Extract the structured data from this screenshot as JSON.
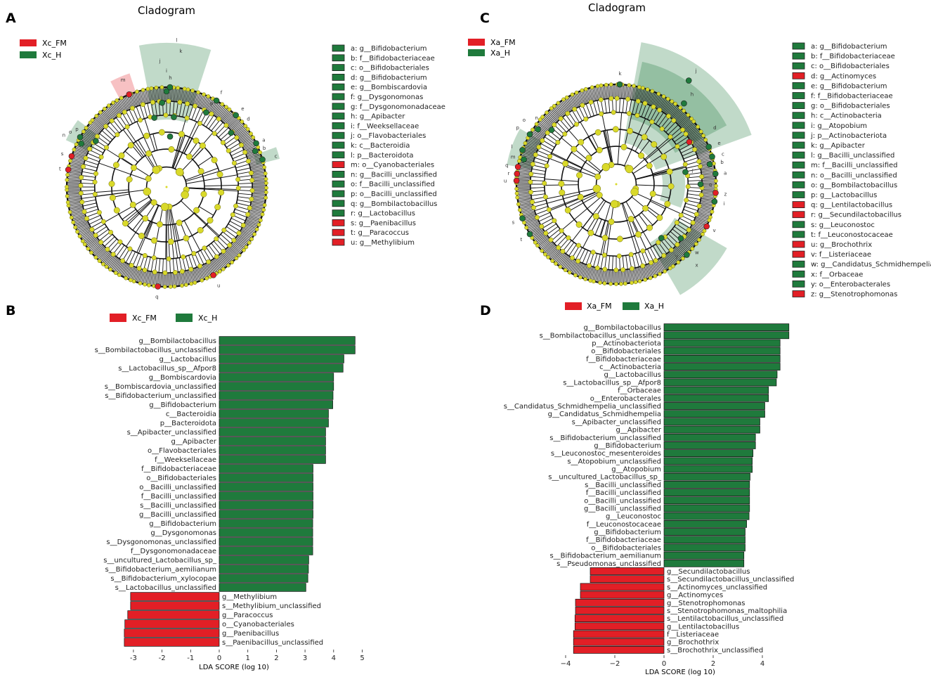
{
  "panel_letters": {
    "a": "A",
    "b": "B",
    "c": "C",
    "d": "D"
  },
  "colors": {
    "fm": "#e21f26",
    "h": "#1f7a3c",
    "node": "#d9d92a",
    "branch": "#111111"
  },
  "cladogram_A": {
    "title": "Cladogram",
    "legend": [
      {
        "label": "Xc_FM",
        "group": "fm"
      },
      {
        "label": "Xc_H",
        "group": "h"
      }
    ],
    "node_letters": [
      "a",
      "b",
      "c",
      "d",
      "e",
      "f",
      "g",
      "h",
      "i",
      "j",
      "k",
      "l",
      "m",
      "n",
      "o",
      "p",
      "q",
      "r",
      "s",
      "t",
      "u"
    ],
    "key": [
      {
        "text": "a: g__Bifidobacterium",
        "group": "h"
      },
      {
        "text": "b: f__Bifidobacteriaceae",
        "group": "h"
      },
      {
        "text": "c: o__Bifidobacteriales",
        "group": "h"
      },
      {
        "text": "d: g__Bifidobacterium",
        "group": "h"
      },
      {
        "text": "e: g__Bombiscardovia",
        "group": "h"
      },
      {
        "text": "f: g__Dysgonomonas",
        "group": "h"
      },
      {
        "text": "g: f__Dysgonomonadaceae",
        "group": "h"
      },
      {
        "text": "h: g__Apibacter",
        "group": "h"
      },
      {
        "text": "i: f__Weeksellaceae",
        "group": "h"
      },
      {
        "text": "j: o__Flavobacteriales",
        "group": "h"
      },
      {
        "text": "k: c__Bacteroidia",
        "group": "h"
      },
      {
        "text": "l: p__Bacteroidota",
        "group": "h"
      },
      {
        "text": "m: o__Cyanobacteriales",
        "group": "fm"
      },
      {
        "text": "n: g__Bacilli_unclassified",
        "group": "h"
      },
      {
        "text": "o: f__Bacilli_unclassified",
        "group": "h"
      },
      {
        "text": "p: o__Bacilli_unclassified",
        "group": "h"
      },
      {
        "text": "q: g__Bombilactobacillus",
        "group": "h"
      },
      {
        "text": "r: g__Lactobacillus",
        "group": "h"
      },
      {
        "text": "s: g__Paenibacillus",
        "group": "fm"
      },
      {
        "text": "t: g__Paracoccus",
        "group": "fm"
      },
      {
        "text": "u: g__Methylibium",
        "group": "fm"
      }
    ]
  },
  "cladogram_C": {
    "title": "Cladogram",
    "legend": [
      {
        "label": "Xa_FM",
        "group": "fm"
      },
      {
        "label": "Xa_H",
        "group": "h"
      }
    ],
    "node_letters": [
      "a",
      "b",
      "c",
      "d",
      "e",
      "f",
      "g",
      "h",
      "i",
      "j",
      "k",
      "l",
      "m",
      "n",
      "o",
      "p",
      "q",
      "r",
      "s",
      "t",
      "u",
      "v",
      "w",
      "x",
      "y",
      "z"
    ],
    "key": [
      {
        "text": "a: g__Bifidobacterium",
        "group": "h"
      },
      {
        "text": "b: f__Bifidobacteriaceae",
        "group": "h"
      },
      {
        "text": "c: o__Bifidobacteriales",
        "group": "h"
      },
      {
        "text": "d: g__Actinomyces",
        "group": "fm"
      },
      {
        "text": "e: g__Bifidobacterium",
        "group": "h"
      },
      {
        "text": "f: f__Bifidobacteriaceae",
        "group": "h"
      },
      {
        "text": "g: o__Bifidobacteriales",
        "group": "h"
      },
      {
        "text": "h: c__Actinobacteria",
        "group": "h"
      },
      {
        "text": "i: g__Atopobium",
        "group": "h"
      },
      {
        "text": "j: p__Actinobacteriota",
        "group": "h"
      },
      {
        "text": "k: g__Apibacter",
        "group": "h"
      },
      {
        "text": "l: g__Bacilli_unclassified",
        "group": "h"
      },
      {
        "text": "m: f__Bacilli_unclassified",
        "group": "h"
      },
      {
        "text": "n: o__Bacilli_unclassified",
        "group": "h"
      },
      {
        "text": "o: g__Bombilactobacillus",
        "group": "h"
      },
      {
        "text": "p: g__Lactobacillus",
        "group": "h"
      },
      {
        "text": "q: g__Lentilactobacillus",
        "group": "fm"
      },
      {
        "text": "r: g__Secundilactobacillus",
        "group": "fm"
      },
      {
        "text": "s: g__Leuconostoc",
        "group": "h"
      },
      {
        "text": "t: f__Leuconostocaceae",
        "group": "h"
      },
      {
        "text": "u: g__Brochothrix",
        "group": "fm"
      },
      {
        "text": "v: f__Listeriaceae",
        "group": "fm"
      },
      {
        "text": "w: g__Candidatus_Schmidhempelia",
        "group": "h"
      },
      {
        "text": "x: f__Orbaceae",
        "group": "h"
      },
      {
        "text": "y: o__Enterobacterales",
        "group": "h"
      },
      {
        "text": "z: g__Stenotrophomonas",
        "group": "fm"
      }
    ]
  },
  "chart_data": [
    {
      "type": "bar",
      "orientation": "horizontal",
      "panel": "B",
      "legend": [
        {
          "label": "Xc_FM",
          "group": "fm"
        },
        {
          "label": "Xc_H",
          "group": "h"
        }
      ],
      "xlabel": "LDA SCORE (log 10)",
      "xlim": [
        -3.6,
        5.2
      ],
      "xticks": [
        -3,
        -2,
        -1,
        0,
        1,
        2,
        3,
        4,
        5
      ],
      "bars": [
        {
          "label": "g__Bombilactobacillus",
          "value": 4.75,
          "group": "h"
        },
        {
          "label": "s__Bombilactobacillus_unclassified",
          "value": 4.75,
          "group": "h"
        },
        {
          "label": "g__Lactobacillus",
          "value": 4.36,
          "group": "h"
        },
        {
          "label": "s__Lactobacillus_sp__Afpor8",
          "value": 4.33,
          "group": "h"
        },
        {
          "label": "g__Bombiscardovia",
          "value": 4.0,
          "group": "h"
        },
        {
          "label": "s__Bombiscardovia_unclassified",
          "value": 4.0,
          "group": "h"
        },
        {
          "label": "s__Bifidobacterium_unclassified",
          "value": 3.98,
          "group": "h"
        },
        {
          "label": "g__Bifidobacterium",
          "value": 3.97,
          "group": "h"
        },
        {
          "label": "c__Bacteroidia",
          "value": 3.82,
          "group": "h"
        },
        {
          "label": "p__Bacteroidota",
          "value": 3.82,
          "group": "h"
        },
        {
          "label": "s__Apibacter_unclassified",
          "value": 3.72,
          "group": "h"
        },
        {
          "label": "g__Apibacter",
          "value": 3.72,
          "group": "h"
        },
        {
          "label": "o__Flavobacteriales",
          "value": 3.72,
          "group": "h"
        },
        {
          "label": "f__Weeksellaceae",
          "value": 3.72,
          "group": "h"
        },
        {
          "label": "f__Bifidobacteriaceae",
          "value": 3.28,
          "group": "h"
        },
        {
          "label": "o__Bifidobacteriales",
          "value": 3.28,
          "group": "h"
        },
        {
          "label": "o__Bacilli_unclassified",
          "value": 3.28,
          "group": "h"
        },
        {
          "label": "f__Bacilli_unclassified",
          "value": 3.28,
          "group": "h"
        },
        {
          "label": "s__Bacilli_unclassified",
          "value": 3.28,
          "group": "h"
        },
        {
          "label": "g__Bacilli_unclassified",
          "value": 3.28,
          "group": "h"
        },
        {
          "label": "g__Bifidobacterium",
          "value": 3.27,
          "group": "h"
        },
        {
          "label": "g__Dysgonomonas",
          "value": 3.27,
          "group": "h"
        },
        {
          "label": "s__Dysgonomonas_unclassified",
          "value": 3.27,
          "group": "h"
        },
        {
          "label": "f__Dysgonomonadaceae",
          "value": 3.27,
          "group": "h"
        },
        {
          "label": "s__uncultured_Lactobacillus_sp_",
          "value": 3.13,
          "group": "h"
        },
        {
          "label": "s__Bifidobacterium_aemilianum",
          "value": 3.12,
          "group": "h"
        },
        {
          "label": "s__Bifidobacterium_xylocopae",
          "value": 3.1,
          "group": "h"
        },
        {
          "label": "s__Lactobacillus_unclassified",
          "value": 3.03,
          "group": "h"
        },
        {
          "label": "g__Methylibium",
          "value": -3.1,
          "group": "fm"
        },
        {
          "label": "s__Methylibium_unclassified",
          "value": -3.1,
          "group": "fm"
        },
        {
          "label": "g__Paracoccus",
          "value": -3.2,
          "group": "fm"
        },
        {
          "label": "o__Cyanobacteriales",
          "value": -3.3,
          "group": "fm"
        },
        {
          "label": "g__Paenibacillus",
          "value": -3.32,
          "group": "fm"
        },
        {
          "label": "s__Paenibacillus_unclassified",
          "value": -3.32,
          "group": "fm"
        }
      ]
    },
    {
      "type": "bar",
      "orientation": "horizontal",
      "panel": "D",
      "legend": [
        {
          "label": "Xa_FM",
          "group": "fm"
        },
        {
          "label": "Xa_H",
          "group": "h"
        }
      ],
      "xlabel": "LDA SCORE (log 10)",
      "xlim": [
        -4.3,
        5.3
      ],
      "xticks": [
        -4,
        -2,
        0,
        2,
        4
      ],
      "xtick_labels": [
        "−4",
        "−2",
        "0",
        "2",
        "4"
      ],
      "bars": [
        {
          "label": "g__Bombilactobacillus",
          "value": 5.08,
          "group": "h"
        },
        {
          "label": "s__Bombilactobacillus_unclassified",
          "value": 5.08,
          "group": "h"
        },
        {
          "label": "p__Actinobacteriota",
          "value": 4.72,
          "group": "h"
        },
        {
          "label": "o__Bifidobacteriales",
          "value": 4.72,
          "group": "h"
        },
        {
          "label": "f__Bifidobacteriaceae",
          "value": 4.72,
          "group": "h"
        },
        {
          "label": "c__Actinobacteria",
          "value": 4.72,
          "group": "h"
        },
        {
          "label": "g__Lactobacillus",
          "value": 4.6,
          "group": "h"
        },
        {
          "label": "s__Lactobacillus_sp__Afpor8",
          "value": 4.57,
          "group": "h"
        },
        {
          "label": "f__Orbaceae",
          "value": 4.25,
          "group": "h"
        },
        {
          "label": "o__Enterobacterales",
          "value": 4.25,
          "group": "h"
        },
        {
          "label": "s__Candidatus_Schmidhempelia_unclassified",
          "value": 4.1,
          "group": "h"
        },
        {
          "label": "g__Candidatus_Schmidhempelia",
          "value": 4.1,
          "group": "h"
        },
        {
          "label": "s__Apibacter_unclassified",
          "value": 3.9,
          "group": "h"
        },
        {
          "label": "g__Apibacter",
          "value": 3.9,
          "group": "h"
        },
        {
          "label": "s__Bifidobacterium_unclassified",
          "value": 3.72,
          "group": "h"
        },
        {
          "label": "g__Bifidobacterium",
          "value": 3.72,
          "group": "h"
        },
        {
          "label": "s__Leuconostoc_mesenteroides",
          "value": 3.62,
          "group": "h"
        },
        {
          "label": "s__Atopobium_unclassified",
          "value": 3.59,
          "group": "h"
        },
        {
          "label": "g__Atopobium",
          "value": 3.59,
          "group": "h"
        },
        {
          "label": "s__uncultured_Lactobacillus_sp_",
          "value": 3.5,
          "group": "h"
        },
        {
          "label": "s__Bacilli_unclassified",
          "value": 3.48,
          "group": "h"
        },
        {
          "label": "f__Bacilli_unclassified",
          "value": 3.48,
          "group": "h"
        },
        {
          "label": "o__Bacilli_unclassified",
          "value": 3.48,
          "group": "h"
        },
        {
          "label": "g__Bacilli_unclassified",
          "value": 3.48,
          "group": "h"
        },
        {
          "label": "g__Leuconostoc",
          "value": 3.46,
          "group": "h"
        },
        {
          "label": "f__Leuconostocaceae",
          "value": 3.36,
          "group": "h"
        },
        {
          "label": "g__Bifidobacterium",
          "value": 3.3,
          "group": "h"
        },
        {
          "label": "f__Bifidobacteriaceae",
          "value": 3.3,
          "group": "h"
        },
        {
          "label": "o__Bifidobacteriales",
          "value": 3.3,
          "group": "h"
        },
        {
          "label": "s__Bifidobacterium_aemilianum",
          "value": 3.25,
          "group": "h"
        },
        {
          "label": "s__Pseudomonas_unclassified",
          "value": 3.25,
          "group": "h"
        },
        {
          "label": "g__Secundilactobacillus",
          "value": -3.0,
          "group": "fm"
        },
        {
          "label": "s__Secundilactobacillus_unclassified",
          "value": -3.0,
          "group": "fm"
        },
        {
          "label": "s__Actinomyces_unclassified",
          "value": -3.4,
          "group": "fm"
        },
        {
          "label": "g__Actinomyces",
          "value": -3.4,
          "group": "fm"
        },
        {
          "label": "g__Stenotrophomonas",
          "value": -3.6,
          "group": "fm"
        },
        {
          "label": "s__Stenotrophomonas_maltophilia",
          "value": -3.6,
          "group": "fm"
        },
        {
          "label": "s__Lentilactobacillus_unclassified",
          "value": -3.62,
          "group": "fm"
        },
        {
          "label": "g__Lentilactobacillus",
          "value": -3.62,
          "group": "fm"
        },
        {
          "label": "f__Listeriaceae",
          "value": -3.68,
          "group": "fm"
        },
        {
          "label": "g__Brochothrix",
          "value": -3.68,
          "group": "fm"
        },
        {
          "label": "s__Brochothrix_unclassified",
          "value": -3.68,
          "group": "fm"
        }
      ]
    }
  ]
}
